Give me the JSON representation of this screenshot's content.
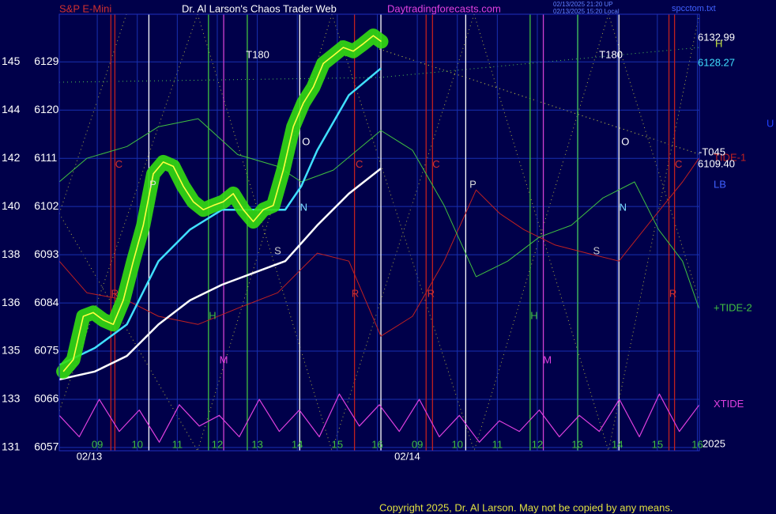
{
  "chart_data": {
    "type": "line",
    "symbol": "S&P E-Mini",
    "title": "Dr. Al Larson's Chaos Trader Web",
    "site": "Daytradingforecasts.com",
    "timestamps": [
      "02/13/2025 21:20 UP",
      "02/13/2025 15:20 Local"
    ],
    "file": "spcctom.txt",
    "copyright": "Copyright 2025, Dr. Al Larson. May not be copied by any means.",
    "xlim": [
      -0.95,
      15.05
    ],
    "ylim": [
      6056.4,
      6137.9
    ],
    "yticks": [
      {
        "value": 6057,
        "label": "131 6057"
      },
      {
        "value": 6066,
        "label": "133 6066"
      },
      {
        "value": 6075,
        "label": "135 6075"
      },
      {
        "value": 6084,
        "label": "136 6084"
      },
      {
        "value": 6093,
        "label": "138 6093"
      },
      {
        "value": 6102,
        "label": "140 6102"
      },
      {
        "value": 6111,
        "label": "142 6111"
      },
      {
        "value": 6120,
        "label": "144 6120"
      },
      {
        "value": 6129,
        "label": "145 6129"
      }
    ],
    "xticks": [
      {
        "value": 0,
        "label": "09"
      },
      {
        "value": 1,
        "label": "10"
      },
      {
        "value": 2,
        "label": "11"
      },
      {
        "value": 3,
        "label": "12"
      },
      {
        "value": 4,
        "label": "13"
      },
      {
        "value": 5,
        "label": "14"
      },
      {
        "value": 6,
        "label": "15"
      },
      {
        "value": 7,
        "label": "16"
      },
      {
        "value": 8,
        "label": "09"
      },
      {
        "value": 9,
        "label": "10"
      },
      {
        "value": 10,
        "label": "11"
      },
      {
        "value": 11,
        "label": "12"
      },
      {
        "value": 12,
        "label": "13"
      },
      {
        "value": 13,
        "label": "14"
      },
      {
        "value": 14,
        "label": "15"
      },
      {
        "value": 15,
        "label": "16"
      }
    ],
    "date_labels": [
      {
        "value": -0.2,
        "label": "02/13"
      },
      {
        "value": 7.75,
        "label": "02/14"
      }
    ],
    "grid": true,
    "time_lines": [
      {
        "x": 1.29,
        "color": "#ffffff"
      },
      {
        "x": 5.06,
        "color": "#ffffff"
      },
      {
        "x": 7.09,
        "color": "#ffffff"
      },
      {
        "x": 9.21,
        "color": "#ffffff"
      },
      {
        "x": 13.04,
        "color": "#ffffff"
      },
      {
        "x": 2.78,
        "color": "#40c040"
      },
      {
        "x": 3.75,
        "color": "#40c040"
      },
      {
        "x": 10.82,
        "color": "#40c040"
      },
      {
        "x": 12.01,
        "color": "#40c040"
      },
      {
        "x": 0.34,
        "color": "#c02020"
      },
      {
        "x": 0.44,
        "color": "#c02020"
      },
      {
        "x": 6.43,
        "color": "#c02020"
      },
      {
        "x": 8.22,
        "color": "#c02020"
      },
      {
        "x": 8.38,
        "color": "#c02020"
      },
      {
        "x": 14.29,
        "color": "#c02020"
      },
      {
        "x": 14.43,
        "color": "#c02020"
      },
      {
        "x": 3.16,
        "color": "#d040d0"
      },
      {
        "x": 11.15,
        "color": "#d040d0"
      }
    ],
    "series": [
      {
        "name": "XTIDE",
        "color": "#e040e0",
        "width": 1.2,
        "x": [
          -0.95,
          -0.45,
          0.05,
          0.55,
          1.05,
          1.55,
          2.05,
          2.55,
          3.05,
          3.55,
          4.05,
          4.55,
          5.05,
          5.55,
          6.05,
          6.55,
          7.05,
          7.55,
          8.05,
          8.55,
          9.05,
          9.55,
          10.05,
          10.55,
          11.05,
          11.55,
          12.05,
          12.55,
          13.05,
          13.55,
          14.05,
          14.55,
          15.05
        ],
        "values": [
          6063,
          6059,
          6066,
          6060,
          6064,
          6058,
          6065,
          6061,
          6063,
          6059,
          6066,
          6060,
          6064,
          6059,
          6067,
          6061,
          6065,
          6060,
          6066,
          6059,
          6063,
          6058,
          6062,
          6060,
          6064,
          6059,
          6063,
          6060,
          6066,
          6059,
          6067,
          6060,
          6065
        ]
      },
      {
        "name": "TIDE-1",
        "color": "#c02020",
        "width": 1,
        "x": [
          -0.95,
          -0.26,
          0.74,
          1.53,
          2.52,
          3.51,
          4.51,
          5.5,
          6.29,
          7.09,
          7.88,
          8.67,
          9.47,
          10.06,
          10.66,
          11.45,
          12.24,
          13.04,
          13.83,
          14.63,
          15.04
        ],
        "values": [
          6091.8,
          6085.9,
          6084.5,
          6081.5,
          6080.0,
          6083.0,
          6085.9,
          6093.3,
          6091.8,
          6077.8,
          6081.5,
          6091.8,
          6105.1,
          6100.7,
          6097.7,
          6094.8,
          6093.3,
          6091.8,
          6099.2,
          6106.6,
          6111.0
        ]
      },
      {
        "name": "+TIDE-2",
        "color": "#40c040",
        "width": 1,
        "x": [
          -0.95,
          -0.26,
          0.74,
          1.53,
          2.52,
          3.51,
          4.51,
          5.1,
          5.9,
          7.09,
          7.88,
          8.67,
          9.47,
          10.26,
          11.05,
          11.85,
          12.64,
          13.43,
          14.03,
          14.63,
          15.04
        ],
        "values": [
          6106.6,
          6111.0,
          6113.2,
          6116.9,
          6118.4,
          6111.7,
          6109.5,
          6106.6,
          6108.8,
          6116.2,
          6112.5,
          6102.2,
          6088.9,
          6091.8,
          6096.3,
          6098.5,
          6103.6,
          6106.6,
          6097.7,
          6091.8,
          6083.0
        ]
      },
      {
        "color": "#ffffff",
        "width": 2.5,
        "x": [
          -0.95,
          -0.06,
          0.74,
          1.53,
          2.32,
          3.12,
          3.91,
          4.7,
          5.5,
          6.29,
          7.09
        ],
        "values": [
          6069.7,
          6071.2,
          6074.1,
          6080.0,
          6084.5,
          6087.4,
          6089.6,
          6091.8,
          6098.5,
          6104.4,
          6109.1
        ]
      },
      {
        "color": "#40e0ff",
        "width": 2.5,
        "x": [
          -0.95,
          -0.06,
          0.74,
          1.53,
          2.32,
          3.12,
          3.91,
          4.7,
          5.1,
          5.5,
          6.29,
          7.09
        ],
        "values": [
          6072.4,
          6075.6,
          6080.0,
          6091.8,
          6097.7,
          6101.4,
          6101.4,
          6101.4,
          6105.8,
          6112.5,
          6122.8,
          6127.8
        ]
      },
      {
        "color": "#ffff40",
        "width": 1.6,
        "halo": "#33dd11",
        "x": [
          -0.85,
          -0.6,
          -0.35,
          -0.1,
          0.15,
          0.4,
          0.65,
          0.9,
          1.15,
          1.4,
          1.65,
          1.9,
          2.15,
          2.4,
          2.65,
          2.9,
          3.15,
          3.4,
          3.65,
          3.9,
          4.15,
          4.4,
          4.65,
          4.9,
          5.15,
          5.4,
          5.65,
          5.9,
          6.15,
          6.4,
          6.65,
          6.9,
          7.1
        ],
        "values": [
          6071.2,
          6073.4,
          6081.5,
          6082.2,
          6080.8,
          6080.0,
          6084.5,
          6091.8,
          6098.5,
          6108.1,
          6110.3,
          6109.5,
          6105.8,
          6102.9,
          6101.4,
          6102.2,
          6102.9,
          6104.4,
          6101.4,
          6099.2,
          6101.4,
          6102.2,
          6108.8,
          6116.9,
          6121.3,
          6124.3,
          6128.7,
          6130.2,
          6131.7,
          6131.0,
          6132.4,
          6133.9,
          6132.8
        ]
      }
    ],
    "right_labels": [
      "6132.99",
      "H",
      "6128.27",
      "U",
      "-T045",
      "6109.40",
      "LB",
      "2025"
    ],
    "annotations": [
      {
        "text": "T180",
        "x": 4.01,
        "y": 6130.2,
        "color": "#ffffff"
      },
      {
        "text": "T180",
        "x": 12.84,
        "y": 6130.2,
        "color": "#ffffff"
      },
      {
        "text": "C",
        "x": 0.54,
        "y": 6109.8,
        "color": "#d03030"
      },
      {
        "text": "C",
        "x": 6.55,
        "y": 6109.8,
        "color": "#d03030"
      },
      {
        "text": "C",
        "x": 8.47,
        "y": 6109.8,
        "color": "#d03030"
      },
      {
        "text": "C",
        "x": 14.53,
        "y": 6109.8,
        "color": "#d03030"
      },
      {
        "text": "P",
        "x": 1.39,
        "y": 6106.0,
        "color": "#dddddd"
      },
      {
        "text": "P",
        "x": 9.39,
        "y": 6106.0,
        "color": "#dddddd"
      },
      {
        "text": "O",
        "x": 5.22,
        "y": 6114.0,
        "color": "#ffffff"
      },
      {
        "text": "O",
        "x": 13.2,
        "y": 6114.0,
        "color": "#ffffff"
      },
      {
        "text": "N",
        "x": 5.16,
        "y": 6101.7,
        "color": "#80e0ff"
      },
      {
        "text": "N",
        "x": 13.14,
        "y": 6101.7,
        "color": "#80e0ff"
      },
      {
        "text": "S",
        "x": 4.51,
        "y": 6093.6,
        "color": "#cccccc"
      },
      {
        "text": "S",
        "x": 12.48,
        "y": 6093.6,
        "color": "#cccccc"
      },
      {
        "text": "H",
        "x": 2.88,
        "y": 6081.5,
        "color": "#40c040"
      },
      {
        "text": "H",
        "x": 10.92,
        "y": 6081.5,
        "color": "#40c040"
      },
      {
        "text": "M",
        "x": 3.16,
        "y": 6073.2,
        "color": "#e040e0"
      },
      {
        "text": "M",
        "x": 11.25,
        "y": 6073.2,
        "color": "#e040e0"
      },
      {
        "text": "R",
        "x": 0.44,
        "y": 6085.6,
        "color": "#d03030"
      },
      {
        "text": "R",
        "x": 6.45,
        "y": 6085.6,
        "color": "#d03030"
      },
      {
        "text": "R",
        "x": 8.34,
        "y": 6085.6,
        "color": "#d03030"
      },
      {
        "text": "R",
        "x": 14.39,
        "y": 6085.6,
        "color": "#d03030"
      }
    ]
  }
}
